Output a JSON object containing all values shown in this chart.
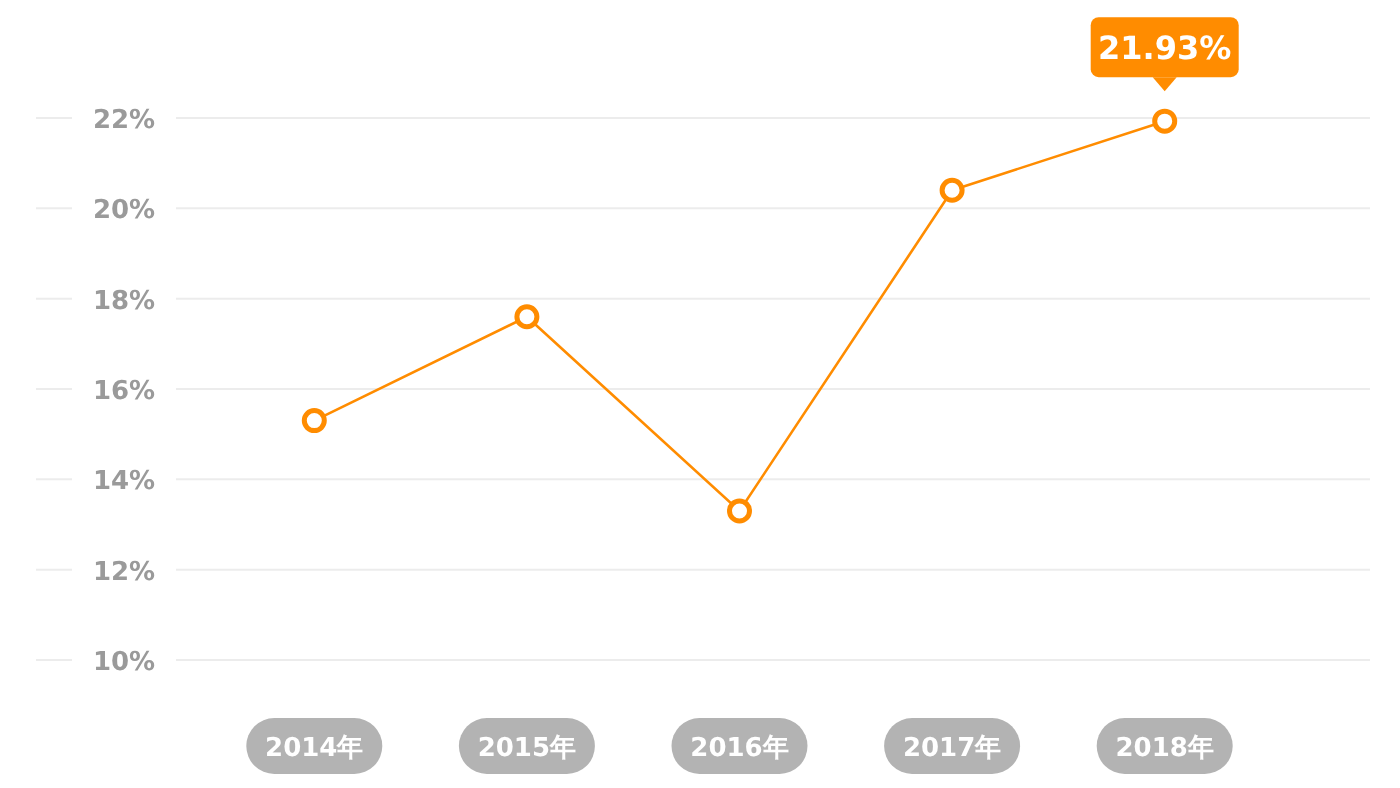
{
  "chart_data": {
    "type": "line",
    "categories": [
      "2014年",
      "2015年",
      "2016年",
      "2017年",
      "2018年"
    ],
    "series": [
      {
        "color": "#ff8c00",
        "values": [
          15.3,
          17.6,
          13.3,
          20.4,
          21.93
        ],
        "value_labels": [
          null,
          null,
          null,
          null,
          "21.93%"
        ]
      }
    ],
    "ylim": [
      10,
      22
    ],
    "yticks": [
      {
        "value": 10,
        "label": "10%"
      },
      {
        "value": 12,
        "label": "12%"
      },
      {
        "value": 14,
        "label": "14%"
      },
      {
        "value": 16,
        "label": "16%"
      },
      {
        "value": 18,
        "label": "18%"
      },
      {
        "value": 20,
        "label": "20%"
      },
      {
        "value": 22,
        "label": "22%"
      }
    ],
    "grid": "y",
    "marker": "circle",
    "line_style": "solid"
  }
}
